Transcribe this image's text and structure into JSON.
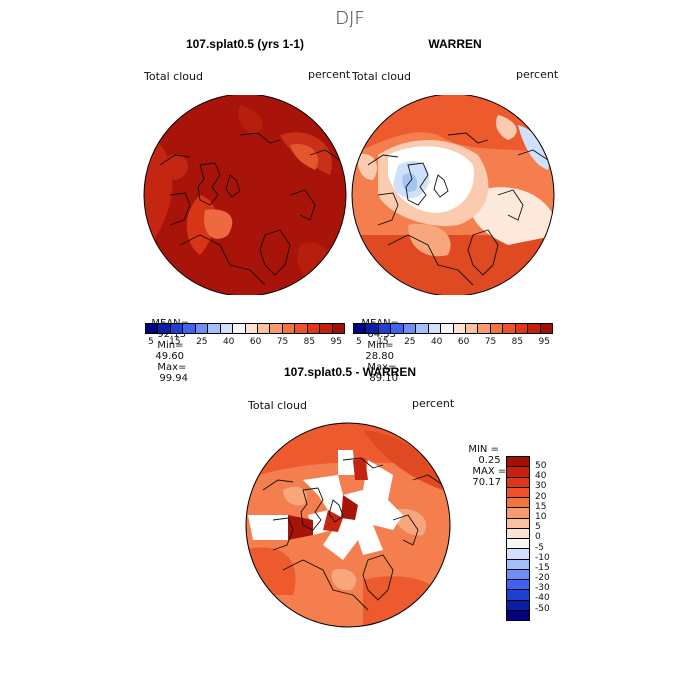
{
  "title": "DJF",
  "panel_left": {
    "title": "107.splat0.5 (yrs 1-1)",
    "variable": "Total cloud",
    "units": "percent",
    "stats": {
      "mean_label": "MEAN=",
      "mean": "92.13",
      "min_label": "Min=",
      "min": "49.60",
      "max_label": "Max=",
      "max": "99.94"
    }
  },
  "panel_right": {
    "title": "WARREN",
    "variable": "Total cloud",
    "units": "percent",
    "stats": {
      "mean_label": "MEAN=",
      "mean": "64.33",
      "min_label": "Min=",
      "min": "28.80",
      "max_label": "Max=",
      "max": "89.10"
    }
  },
  "panel_diff": {
    "title": "107.splat0.5 - WARREN",
    "variable": "Total cloud",
    "units": "percent",
    "stats": {
      "min_label": "MIN =",
      "min": "0.25",
      "max_label": "MAX =",
      "max": "70.17"
    }
  },
  "colorbar_top": {
    "tick_labels": [
      "5",
      "15",
      "25",
      "40",
      "60",
      "75",
      "85",
      "95"
    ],
    "colors": [
      "#000080",
      "#0a1fa3",
      "#1f3fd0",
      "#3f62f0",
      "#6f8ef5",
      "#a3bff7",
      "#d2e0fa",
      "#f7f7f7",
      "#fde3d0",
      "#fbc0a0",
      "#f89a70",
      "#f47440",
      "#ef5226",
      "#e0361a",
      "#c02010",
      "#a01008"
    ]
  },
  "colorbar_diff": {
    "tick_labels": [
      "50",
      "40",
      "30",
      "20",
      "15",
      "10",
      "5",
      "0",
      "-5",
      "-10",
      "-15",
      "-20",
      "-30",
      "-40",
      "-50"
    ],
    "colors": [
      "#a01008",
      "#c82010",
      "#e0361a",
      "#ef5226",
      "#f47440",
      "#f89a70",
      "#fbc0a0",
      "#fde3d0",
      "#f7f7f7",
      "#d2e0fa",
      "#a3bff7",
      "#6f8ef5",
      "#3f62f0",
      "#1f3fd0",
      "#0a1fa3",
      "#000080"
    ]
  },
  "map_colors": {
    "deep_red": "#a8140a",
    "red": "#d42c14",
    "orange_red": "#ec5a2e",
    "orange": "#f47e4e",
    "salmon": "#f8a77c",
    "light_salmon": "#fbcbb0",
    "pale": "#fde8dc",
    "white": "#ffffff",
    "light_blue": "#cfe0fa",
    "blue": "#a7c2f5",
    "mid_blue": "#6f8ef5"
  }
}
